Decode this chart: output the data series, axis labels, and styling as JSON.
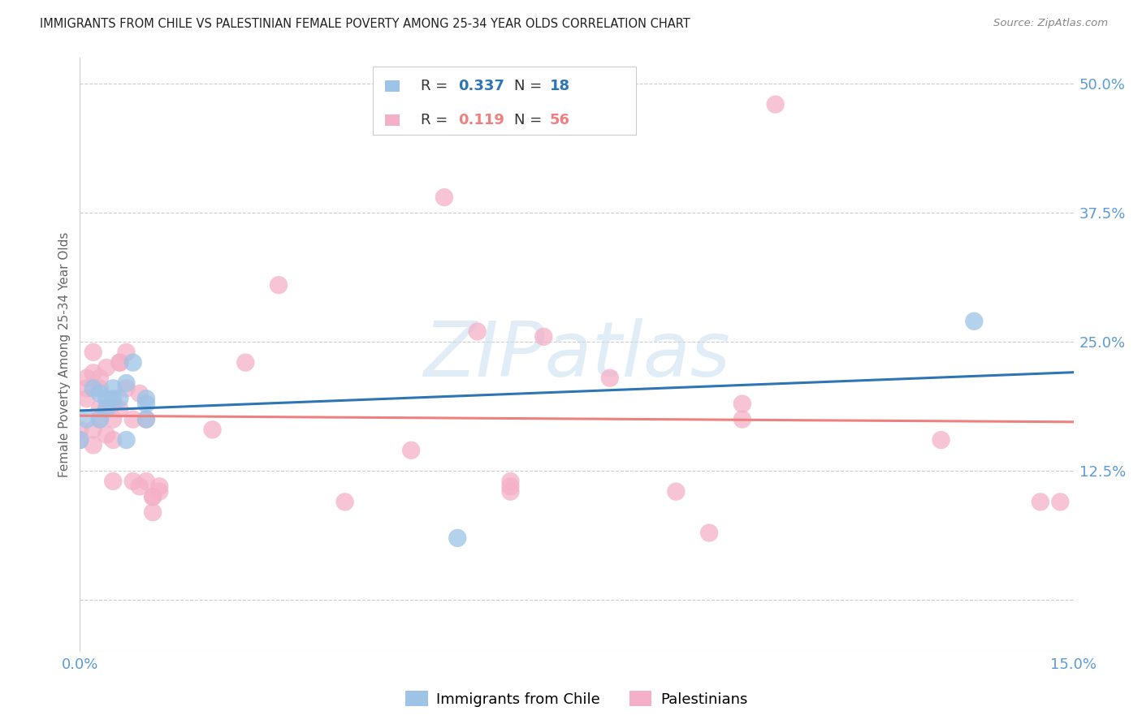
{
  "title": "IMMIGRANTS FROM CHILE VS PALESTINIAN FEMALE POVERTY AMONG 25-34 YEAR OLDS CORRELATION CHART",
  "source": "Source: ZipAtlas.com",
  "ylabel": "Female Poverty Among 25-34 Year Olds",
  "xlim": [
    0.0,
    0.15
  ],
  "ylim": [
    -0.05,
    0.525
  ],
  "yticks": [
    0.0,
    0.125,
    0.25,
    0.375,
    0.5
  ],
  "yticklabels": [
    "",
    "12.5%",
    "25.0%",
    "37.5%",
    "50.0%"
  ],
  "tick_color": "#5b9bd5",
  "legend_R_chile": "0.337",
  "legend_N_chile": "18",
  "legend_R_pal": "0.119",
  "legend_N_pal": "56",
  "chile_color": "#9dc3e6",
  "pal_color": "#f4b0c8",
  "chile_line_color": "#2e75b6",
  "pal_line_color": "#f08080",
  "watermark": "ZIPatlas",
  "chile_x": [
    0.0,
    0.001,
    0.002,
    0.003,
    0.003,
    0.004,
    0.004,
    0.005,
    0.005,
    0.006,
    0.007,
    0.007,
    0.008,
    0.01,
    0.01,
    0.01,
    0.057,
    0.135
  ],
  "chile_y": [
    0.155,
    0.175,
    0.205,
    0.2,
    0.175,
    0.195,
    0.185,
    0.205,
    0.195,
    0.195,
    0.21,
    0.155,
    0.23,
    0.175,
    0.19,
    0.195,
    0.06,
    0.27
  ],
  "pal_x": [
    0.0,
    0.0,
    0.001,
    0.001,
    0.001,
    0.002,
    0.002,
    0.002,
    0.002,
    0.003,
    0.003,
    0.003,
    0.003,
    0.004,
    0.004,
    0.004,
    0.005,
    0.005,
    0.005,
    0.005,
    0.006,
    0.006,
    0.006,
    0.007,
    0.007,
    0.008,
    0.008,
    0.009,
    0.009,
    0.01,
    0.01,
    0.011,
    0.011,
    0.011,
    0.012,
    0.012,
    0.02,
    0.025,
    0.03,
    0.04,
    0.05,
    0.055,
    0.06,
    0.065,
    0.065,
    0.065,
    0.07,
    0.08,
    0.09,
    0.095,
    0.1,
    0.1,
    0.105,
    0.13,
    0.145,
    0.148
  ],
  "pal_y": [
    0.155,
    0.165,
    0.195,
    0.205,
    0.215,
    0.22,
    0.24,
    0.165,
    0.15,
    0.175,
    0.185,
    0.205,
    0.215,
    0.16,
    0.185,
    0.225,
    0.175,
    0.19,
    0.155,
    0.115,
    0.23,
    0.23,
    0.185,
    0.205,
    0.24,
    0.175,
    0.115,
    0.2,
    0.11,
    0.175,
    0.115,
    0.1,
    0.1,
    0.085,
    0.105,
    0.11,
    0.165,
    0.23,
    0.305,
    0.095,
    0.145,
    0.39,
    0.26,
    0.105,
    0.11,
    0.115,
    0.255,
    0.215,
    0.105,
    0.065,
    0.19,
    0.175,
    0.48,
    0.155,
    0.095,
    0.095
  ]
}
